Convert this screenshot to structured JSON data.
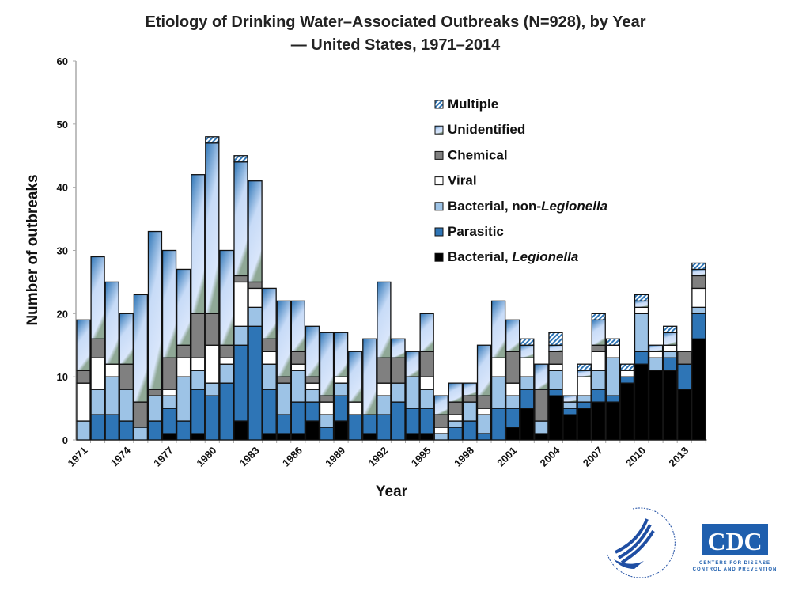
{
  "chart_data": {
    "type": "bar",
    "stacked": true,
    "title": "Etiology of Drinking Water–Associated Outbreaks (N=928), by Year",
    "subtitle": "— United States, 1971–2014",
    "xlabel": "Year",
    "ylabel": "Number of outbreaks",
    "ylim": [
      0,
      60
    ],
    "yticks": [
      0,
      10,
      20,
      30,
      40,
      50,
      60
    ],
    "grid": false,
    "legend_position": "top-right",
    "categories": [
      1971,
      1972,
      1973,
      1974,
      1975,
      1976,
      1977,
      1978,
      1979,
      1980,
      1981,
      1982,
      1983,
      1984,
      1985,
      1986,
      1987,
      1988,
      1989,
      1990,
      1991,
      1992,
      1993,
      1994,
      1995,
      1996,
      1997,
      1998,
      1999,
      2000,
      2001,
      2002,
      2003,
      2004,
      2005,
      2006,
      2007,
      2008,
      2009,
      2010,
      2011,
      2012,
      2013,
      2014
    ],
    "tick_labels": [
      "1971",
      "1974",
      "1977",
      "1980",
      "1983",
      "1986",
      "1989",
      "1992",
      "1995",
      "1998",
      "2001",
      "2004",
      "2007",
      "2010",
      "2013"
    ],
    "series": [
      {
        "name": "Bacterial, Legionella",
        "name_prefix": "Bacterial, ",
        "name_italic": "Legionella",
        "color": "#000000",
        "values": [
          0,
          0,
          0,
          0,
          0,
          0,
          1,
          0,
          1,
          0,
          0,
          3,
          0,
          1,
          1,
          1,
          3,
          0,
          3,
          0,
          1,
          0,
          0,
          1,
          1,
          0,
          0,
          0,
          0,
          0,
          2,
          5,
          1,
          7,
          4,
          5,
          6,
          6,
          9,
          12,
          11,
          11,
          8,
          16
        ]
      },
      {
        "name": "Parasitic",
        "name_prefix": "Parasitic",
        "name_italic": "",
        "color": "#2e75b6",
        "values": [
          0,
          4,
          4,
          3,
          0,
          3,
          4,
          3,
          7,
          7,
          9,
          12,
          18,
          7,
          3,
          5,
          3,
          2,
          4,
          4,
          3,
          4,
          6,
          4,
          4,
          0,
          2,
          3,
          1,
          5,
          3,
          3,
          0,
          1,
          1,
          1,
          2,
          1,
          1,
          2,
          0,
          2,
          4,
          4
        ]
      },
      {
        "name": "Bacterial, non-Legionella",
        "name_prefix": "Bacterial, non-",
        "name_italic": "Legionella",
        "color": "#9dc3e6",
        "values": [
          3,
          4,
          6,
          5,
          2,
          4,
          2,
          7,
          3,
          2,
          3,
          3,
          3,
          4,
          5,
          5,
          2,
          2,
          2,
          0,
          0,
          3,
          3,
          5,
          3,
          1,
          1,
          3,
          3,
          5,
          2,
          2,
          2,
          3,
          1,
          1,
          3,
          6,
          0,
          6,
          2,
          1,
          0,
          1
        ]
      },
      {
        "name": "Viral",
        "name_prefix": "Viral",
        "name_italic": "",
        "color": "#ffffff",
        "values": [
          6,
          5,
          2,
          0,
          0,
          0,
          1,
          3,
          2,
          6,
          1,
          7,
          3,
          2,
          0,
          1,
          1,
          2,
          1,
          2,
          0,
          2,
          0,
          0,
          2,
          1,
          1,
          0,
          1,
          3,
          2,
          3,
          0,
          1,
          0,
          3,
          3,
          2,
          1,
          1,
          1,
          1,
          0,
          3
        ]
      },
      {
        "name": "Chemical",
        "name_prefix": "Chemical",
        "name_italic": "",
        "color": "#808080",
        "values": [
          2,
          3,
          0,
          4,
          4,
          1,
          5,
          2,
          7,
          5,
          2,
          1,
          1,
          2,
          1,
          2,
          1,
          1,
          0,
          0,
          0,
          4,
          4,
          0,
          4,
          2,
          2,
          1,
          2,
          0,
          5,
          0,
          5,
          2,
          0,
          0,
          1,
          0,
          0,
          0,
          0,
          0,
          2,
          2
        ]
      },
      {
        "name": "Unidentified",
        "name_prefix": "Unidentified",
        "name_italic": "",
        "color": "gradient #2e75b6-#d6e4fb",
        "values": [
          8,
          13,
          13,
          8,
          17,
          25,
          17,
          12,
          22,
          27,
          15,
          18,
          16,
          8,
          12,
          8,
          8,
          10,
          7,
          8,
          12,
          12,
          3,
          4,
          6,
          3,
          3,
          2,
          8,
          9,
          5,
          2,
          4,
          1,
          1,
          1,
          4,
          0,
          0,
          1,
          1,
          2,
          0,
          1
        ]
      },
      {
        "name": "Multiple",
        "name_prefix": "Multiple",
        "name_italic": "",
        "color": "hatched #2e75b6/#ffffff",
        "values": [
          0,
          0,
          0,
          0,
          0,
          0,
          0,
          0,
          0,
          1,
          0,
          1,
          0,
          0,
          0,
          0,
          0,
          0,
          0,
          0,
          0,
          0,
          0,
          0,
          0,
          0,
          0,
          0,
          0,
          0,
          0,
          1,
          0,
          2,
          0,
          1,
          1,
          1,
          1,
          1,
          0,
          1,
          0,
          1
        ]
      }
    ]
  },
  "logos": {
    "hhs": "DEPARTMENT OF HEALTH & HUMAN SERVICES · USA",
    "cdc": "CDC",
    "cdc_tagline_1": "CENTERS FOR DISEASE",
    "cdc_tagline_2": "CONTROL AND PREVENTION"
  }
}
